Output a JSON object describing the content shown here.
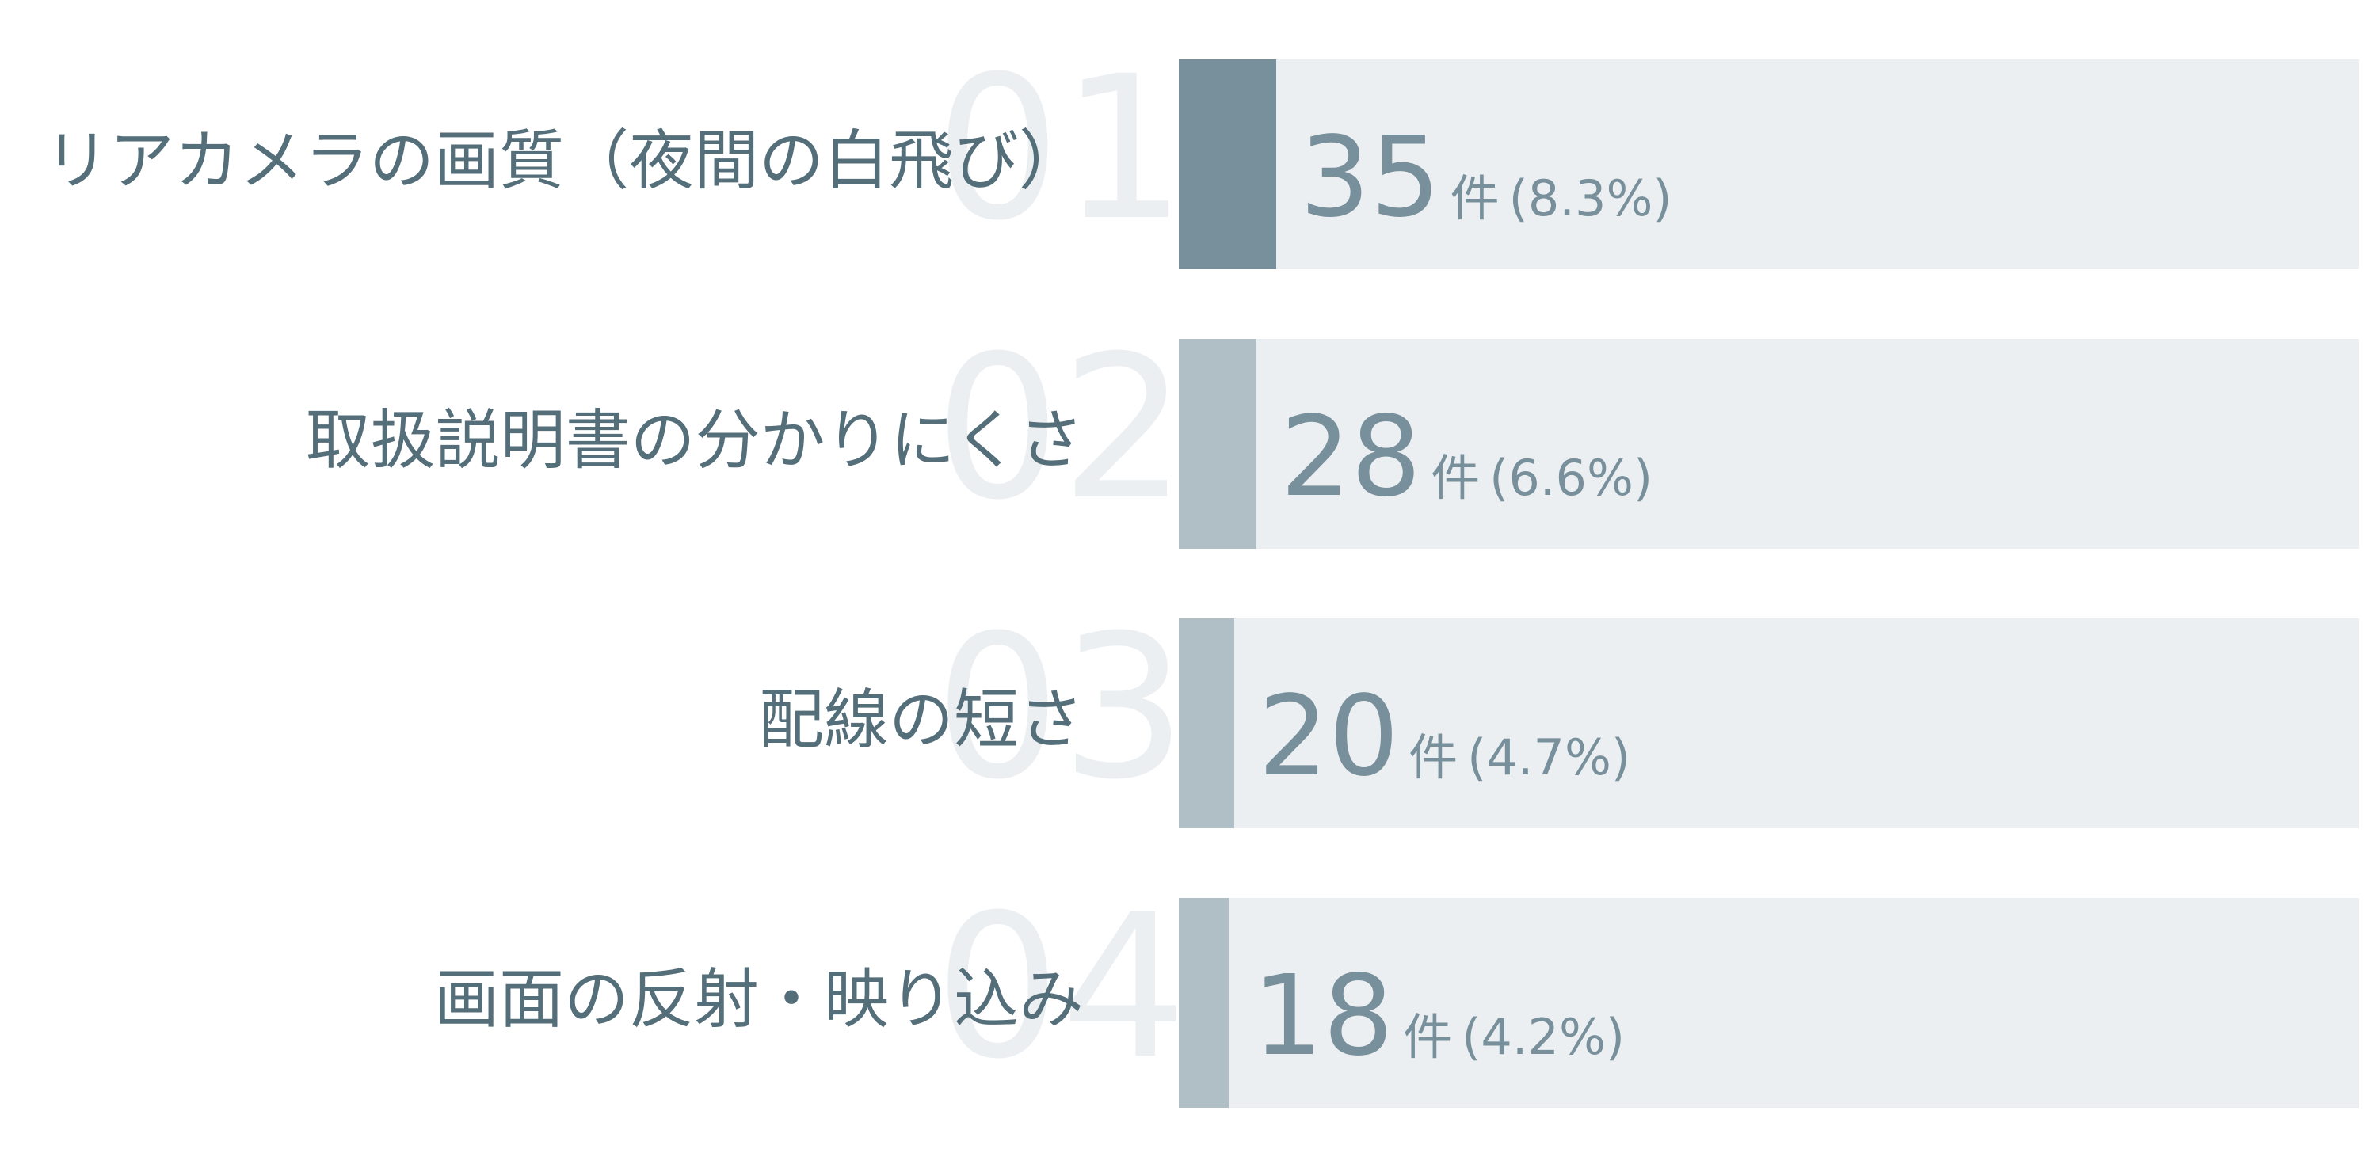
{
  "chart_data": {
    "type": "bar",
    "orientation": "horizontal",
    "categories": [
      "リアカメラの画質（夜間の白飛び）",
      "取扱説明書の分かりにくさ",
      "配線の短さ",
      "画面の反射・映り込み"
    ],
    "ranks": [
      "01",
      "02",
      "03",
      "04"
    ],
    "values": [
      35,
      28,
      20,
      18
    ],
    "unit": "件",
    "percent_labels": [
      "(8.3%)",
      "(6.6%)",
      "(4.7%)",
      "(4.2%)"
    ],
    "colors": {
      "highlight": "#78909c",
      "normal": "#b0bec5",
      "track": "#eceff1",
      "text": "#546e7a",
      "rank_text": "#eceff1"
    },
    "grid": false,
    "legend": "none"
  }
}
